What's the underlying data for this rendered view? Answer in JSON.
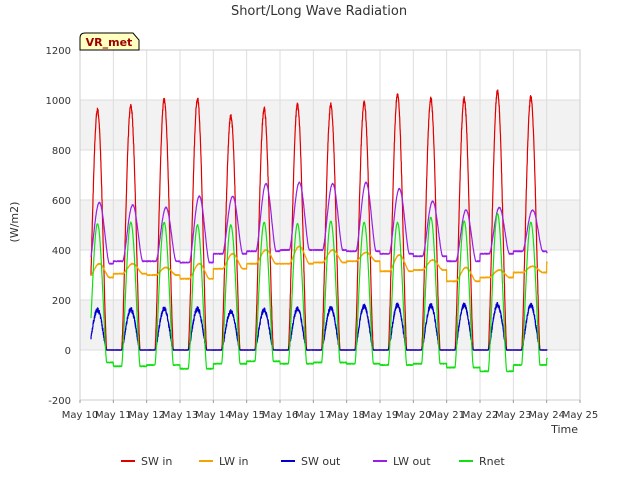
{
  "chart_data": {
    "type": "line",
    "title": "Short/Long Wave Radiation",
    "xlabel": "Time",
    "ylabel": "(W/m2)",
    "badge": "VR_met",
    "xlim": [
      10,
      25
    ],
    "ylim": [
      -200,
      1200
    ],
    "x_ticks": [
      {
        "value": 10,
        "label": "May 10"
      },
      {
        "value": 11,
        "label": "May 11"
      },
      {
        "value": 12,
        "label": "May 12"
      },
      {
        "value": 13,
        "label": "May 13"
      },
      {
        "value": 14,
        "label": "May 14"
      },
      {
        "value": 15,
        "label": "May 15"
      },
      {
        "value": 16,
        "label": "May 16"
      },
      {
        "value": 17,
        "label": "May 17"
      },
      {
        "value": 18,
        "label": "May 18"
      },
      {
        "value": 19,
        "label": "May 19"
      },
      {
        "value": 20,
        "label": "May 20"
      },
      {
        "value": 21,
        "label": "May 21"
      },
      {
        "value": 22,
        "label": "May 22"
      },
      {
        "value": 23,
        "label": "May 23"
      },
      {
        "value": 24,
        "label": "May 24"
      },
      {
        "value": 25,
        "label": "May 25"
      }
    ],
    "y_ticks": [
      -200,
      0,
      200,
      400,
      600,
      800,
      1000,
      1200
    ],
    "grid": true,
    "legend_position": "bottom",
    "days": [
      10,
      11,
      12,
      13,
      14,
      15,
      16,
      17,
      18,
      19,
      20,
      21,
      22,
      23,
      24
    ],
    "series": [
      {
        "name": "SW in",
        "color": "#e00000",
        "kind": "solar",
        "night": 0,
        "peaks": [
          960,
          975,
          1000,
          1005,
          935,
          965,
          980,
          980,
          990,
          1020,
          1005,
          1005,
          1035,
          1010
        ]
      },
      {
        "name": "LW in",
        "color": "#f5a300",
        "kind": "lw",
        "night": [
          290,
          305,
          300,
          285,
          325,
          345,
          345,
          350,
          355,
          315,
          320,
          275,
          290,
          310,
          350
        ],
        "peaks": [
          345,
          345,
          330,
          345,
          385,
          400,
          415,
          400,
          390,
          380,
          360,
          330,
          320,
          335,
          350
        ]
      },
      {
        "name": "SW out",
        "color": "#0000cc",
        "kind": "solar",
        "night": 0,
        "peaks": [
          160,
          162,
          165,
          165,
          155,
          160,
          165,
          168,
          175,
          180,
          178,
          180,
          182,
          180
        ]
      },
      {
        "name": "LW out",
        "color": "#9a1ee6",
        "kind": "lw",
        "night": [
          345,
          355,
          355,
          350,
          385,
          395,
          400,
          400,
          395,
          385,
          375,
          355,
          385,
          395,
          390
        ],
        "peaks": [
          590,
          580,
          570,
          615,
          615,
          665,
          670,
          665,
          670,
          645,
          595,
          560,
          570,
          560,
          390
        ]
      },
      {
        "name": "Rnet",
        "color": "#10e010",
        "kind": "rnet",
        "night": [
          -50,
          -65,
          -60,
          -75,
          -55,
          -45,
          -55,
          -50,
          -55,
          -60,
          -55,
          -70,
          -85,
          -60,
          -35
        ],
        "peaks": [
          505,
          510,
          510,
          500,
          500,
          510,
          505,
          515,
          510,
          510,
          530,
          515,
          545,
          510
        ]
      }
    ]
  }
}
